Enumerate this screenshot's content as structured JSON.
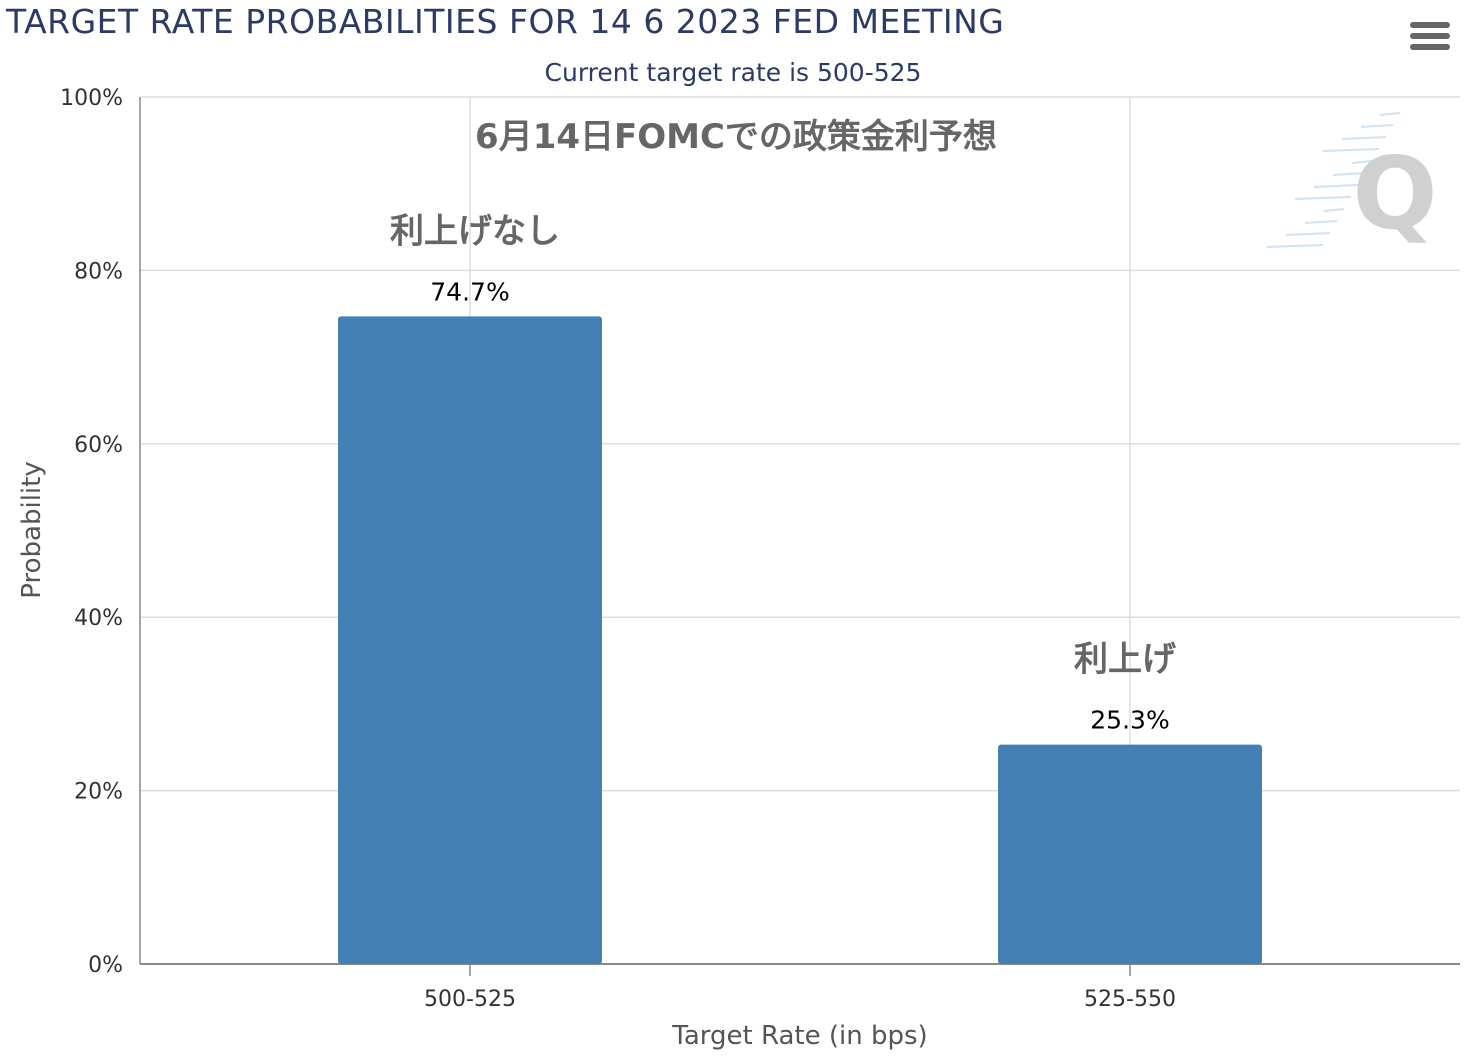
{
  "header": {
    "title": "TARGET RATE PROBABILITIES FOR 14 6 2023 FED MEETING",
    "subtitle": "Current target rate is 500-525",
    "menu_icon": "hamburger-menu-icon"
  },
  "watermark": {
    "letter": "Q",
    "color": "#d0d0d0"
  },
  "colors": {
    "bar": "#4480b3",
    "grid": "#dddddd",
    "axis": "#888888"
  },
  "chart_data": {
    "type": "bar",
    "categories": [
      "500-525",
      "525-550"
    ],
    "values": [
      74.7,
      25.3
    ],
    "data_labels": [
      "74.7%",
      "25.3%"
    ],
    "xlabel": "Target Rate (in bps)",
    "ylabel": "Probability",
    "ylim": [
      0,
      100
    ],
    "y_ticks": [
      "0%",
      "20%",
      "40%",
      "60%",
      "80%",
      "100%"
    ],
    "grid": true,
    "annotations": {
      "overlay_title": "6月14日FOMCでの政策金利予想",
      "bar_labels": [
        "利上げなし",
        "利上げ"
      ]
    }
  }
}
